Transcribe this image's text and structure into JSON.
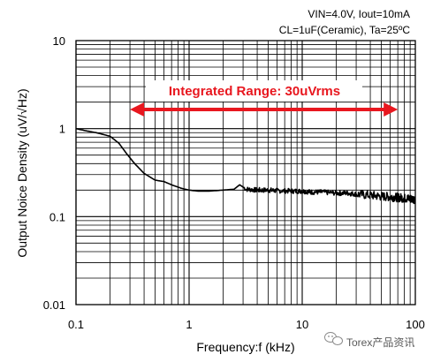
{
  "chart_data": {
    "type": "line",
    "xlabel": "Frequency:f (kHz)",
    "ylabel": "Output Noice Density (uV/√Hz)",
    "xscale": "log",
    "yscale": "log",
    "xlim": [
      0.1,
      100
    ],
    "ylim": [
      0.01,
      10
    ],
    "grid": true,
    "x_ticks": [
      "0.1",
      "1",
      "10",
      "100"
    ],
    "y_ticks": [
      "10",
      "1",
      "0.1",
      "0.01"
    ],
    "conditions": [
      "VIN=4.0V, Iout=10mA",
      "CL=1uF(Ceramic), Ta=25ºC"
    ],
    "annotation": {
      "text": "Integrated Range: 30uVrms",
      "x_from": 0.3,
      "x_to": 70,
      "y": 0.2,
      "color": "#e8171f"
    },
    "series": [
      {
        "color": "#000000",
        "x": [
          0.1,
          0.12,
          0.15,
          0.2,
          0.24,
          0.28,
          0.33,
          0.4,
          0.5,
          0.6,
          0.7,
          0.85,
          1,
          1.2,
          1.5,
          2,
          2.5,
          2.8,
          3.2,
          4,
          5,
          6,
          8,
          10,
          12,
          15,
          20,
          25,
          30,
          40,
          50,
          60,
          70,
          80,
          90,
          100
        ],
        "y": [
          1.0,
          0.95,
          0.9,
          0.82,
          0.68,
          0.52,
          0.4,
          0.31,
          0.26,
          0.25,
          0.23,
          0.21,
          0.2,
          0.195,
          0.195,
          0.2,
          0.205,
          0.23,
          0.205,
          0.2,
          0.2,
          0.197,
          0.195,
          0.195,
          0.19,
          0.19,
          0.185,
          0.185,
          0.18,
          0.175,
          0.17,
          0.168,
          0.165,
          0.162,
          0.16,
          0.158
        ]
      }
    ]
  },
  "watermark": {
    "text": "Torex产品资讯",
    "icon": "wechat-icon"
  }
}
